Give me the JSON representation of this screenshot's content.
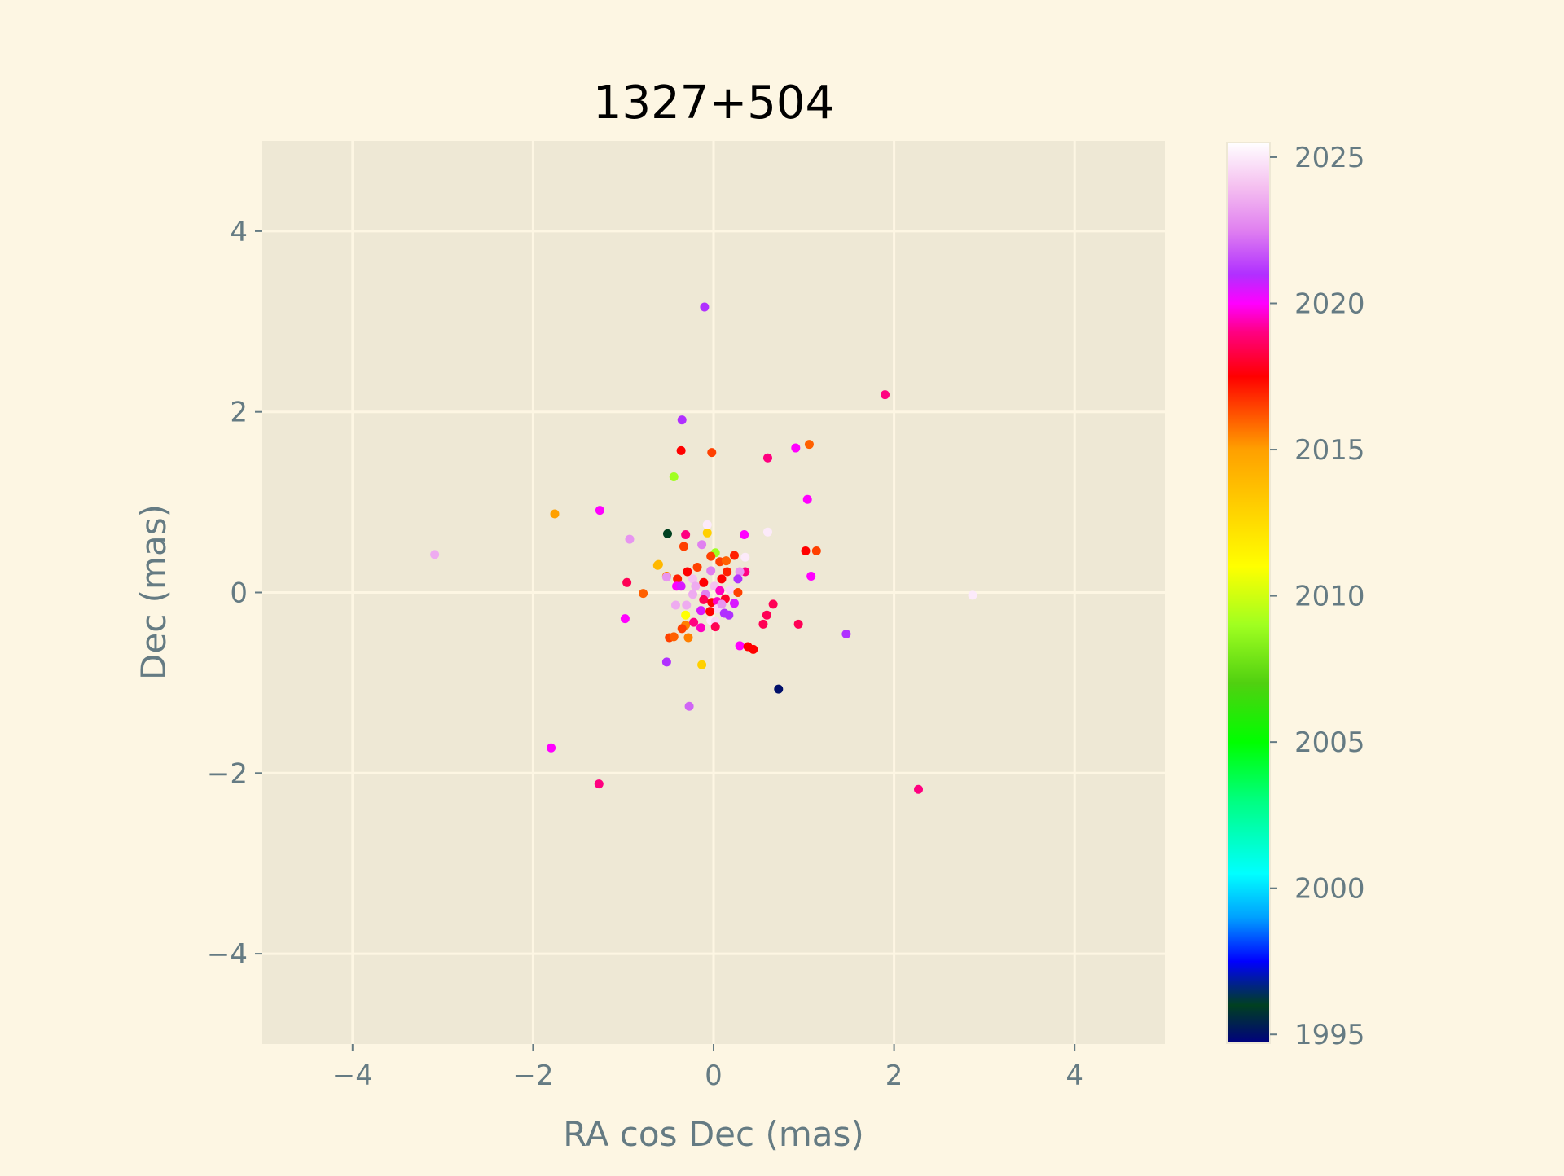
{
  "chart_data": {
    "type": "scatter",
    "title": "1327+504",
    "xlabel": "RA cos Dec (mas)",
    "ylabel": "Dec (mas)",
    "xlim": [
      -5,
      5
    ],
    "ylim": [
      -5,
      5
    ],
    "xticks": [
      -4,
      -2,
      0,
      2,
      4
    ],
    "yticks": [
      -4,
      -2,
      0,
      2,
      4
    ],
    "xtick_labels": [
      "−4",
      "−2",
      "0",
      "2",
      "4"
    ],
    "ytick_labels": [
      "−4",
      "−2",
      "0",
      "2",
      "4"
    ],
    "grid": true,
    "colorbar": {
      "range": [
        1994.7,
        2025.5
      ],
      "ticks": [
        1995,
        2000,
        2005,
        2010,
        2015,
        2020,
        2025
      ],
      "tick_labels": [
        "1995",
        "2000",
        "2005",
        "2010",
        "2015",
        "2020",
        "2025"
      ],
      "colormap": [
        [
          1994.7,
          "#000080"
        ],
        [
          1996,
          "#004020"
        ],
        [
          1997.5,
          "#0000ff"
        ],
        [
          1999,
          "#00a0ff"
        ],
        [
          2000.5,
          "#00ffff"
        ],
        [
          2003,
          "#00ff80"
        ],
        [
          2005,
          "#00ff00"
        ],
        [
          2007,
          "#50d010"
        ],
        [
          2009,
          "#a0ff20"
        ],
        [
          2011,
          "#ffff00"
        ],
        [
          2013,
          "#ffd000"
        ],
        [
          2015,
          "#ffa000"
        ],
        [
          2016.5,
          "#ff4000"
        ],
        [
          2017.5,
          "#ff0000"
        ],
        [
          2019,
          "#ff0080"
        ],
        [
          2020,
          "#ff00ff"
        ],
        [
          2021,
          "#b030ff"
        ],
        [
          2022.5,
          "#e080f0"
        ],
        [
          2024,
          "#f5c0f0"
        ],
        [
          2025.5,
          "#ffffff"
        ]
      ]
    },
    "points": [
      [
        -0.1,
        3.16,
        2021
      ],
      [
        1.9,
        2.19,
        2019
      ],
      [
        -0.35,
        1.91,
        2021
      ],
      [
        -0.36,
        1.57,
        2017.5
      ],
      [
        -0.02,
        1.55,
        2016.5
      ],
      [
        0.6,
        1.49,
        2019
      ],
      [
        0.91,
        1.6,
        2020
      ],
      [
        1.06,
        1.64,
        2016
      ],
      [
        -0.44,
        1.28,
        2009
      ],
      [
        1.04,
        1.03,
        2020
      ],
      [
        -1.76,
        0.87,
        2015
      ],
      [
        -1.26,
        0.91,
        2020
      ],
      [
        -0.93,
        0.59,
        2023
      ],
      [
        -0.51,
        0.65,
        1996
      ],
      [
        -3.09,
        0.42,
        2023.5
      ],
      [
        0.6,
        0.67,
        2025
      ],
      [
        1.02,
        0.46,
        2017.5
      ],
      [
        1.14,
        0.46,
        2016.5
      ],
      [
        1.08,
        0.18,
        2020
      ],
      [
        2.87,
        -0.03,
        2025
      ],
      [
        1.47,
        -0.46,
        2021
      ],
      [
        0.94,
        -0.35,
        2018.5
      ],
      [
        0.66,
        -0.13,
        2018.5
      ],
      [
        0.59,
        -0.25,
        2018.5
      ],
      [
        0.55,
        -0.35,
        2018.5
      ],
      [
        0.29,
        -0.59,
        2020
      ],
      [
        0.38,
        -0.6,
        2017.5
      ],
      [
        0.44,
        -0.63,
        2017.5
      ],
      [
        0.72,
        -1.07,
        1995
      ],
      [
        -0.52,
        -0.77,
        2021
      ],
      [
        -0.13,
        -0.8,
        2013
      ],
      [
        -0.27,
        -1.26,
        2022
      ],
      [
        -1.8,
        -1.72,
        2020
      ],
      [
        -1.27,
        -2.12,
        2019
      ],
      [
        2.27,
        -2.18,
        2019
      ],
      [
        -0.98,
        -0.29,
        2020
      ],
      [
        -0.96,
        0.11,
        2018.5
      ],
      [
        -0.78,
        -0.01,
        2016
      ],
      [
        -0.62,
        0.3,
        2014
      ],
      [
        -0.31,
        0.64,
        2019
      ],
      [
        -0.07,
        0.66,
        2013
      ],
      [
        -0.07,
        0.75,
        2025
      ],
      [
        0.34,
        0.64,
        2020
      ],
      [
        -0.33,
        0.51,
        2016.5
      ],
      [
        -0.13,
        0.53,
        2022.5
      ],
      [
        0.02,
        0.44,
        2009
      ],
      [
        -0.61,
        0.31,
        2014
      ],
      [
        -0.52,
        0.18,
        2015.5
      ],
      [
        -0.52,
        0.17,
        2023
      ],
      [
        -0.4,
        0.15,
        2017
      ],
      [
        -0.29,
        0.23,
        2017.5
      ],
      [
        -0.18,
        0.28,
        2016.5
      ],
      [
        -0.03,
        0.4,
        2016.5
      ],
      [
        0.07,
        0.34,
        2016.5
      ],
      [
        0.14,
        0.35,
        2016
      ],
      [
        0.23,
        0.41,
        2017
      ],
      [
        0.35,
        0.39,
        2025
      ],
      [
        0.35,
        0.23,
        2019
      ],
      [
        0.29,
        0.23,
        2023
      ],
      [
        0.27,
        0.15,
        2021
      ],
      [
        0.15,
        0.23,
        2017
      ],
      [
        0.09,
        0.15,
        2017.5
      ],
      [
        -0.03,
        0.24,
        2022.5
      ],
      [
        -0.11,
        0.11,
        2017.5
      ],
      [
        -0.23,
        0.15,
        2024
      ],
      [
        -0.41,
        0.07,
        2020
      ],
      [
        -0.36,
        0.07,
        2020.5
      ],
      [
        -0.2,
        0.07,
        2023.5
      ],
      [
        -0.23,
        -0.02,
        2023.5
      ],
      [
        -0.09,
        -0.02,
        2022.5
      ],
      [
        0.01,
        0.07,
        2024
      ],
      [
        0.07,
        0.02,
        2019.5
      ],
      [
        0.18,
        0.03,
        2024.5
      ],
      [
        0.27,
        0.0,
        2016.5
      ],
      [
        -0.11,
        -0.08,
        2018.5
      ],
      [
        -0.14,
        -0.2,
        2020.5
      ],
      [
        -0.31,
        -0.25,
        2011
      ],
      [
        -0.42,
        -0.14,
        2023.5
      ],
      [
        -0.3,
        -0.14,
        2023.5
      ],
      [
        -0.02,
        -0.11,
        2017.5
      ],
      [
        0.04,
        -0.1,
        2019.5
      ],
      [
        0.13,
        -0.07,
        2018
      ],
      [
        0.23,
        -0.12,
        2020.5
      ],
      [
        0.04,
        -0.18,
        2024.5
      ],
      [
        0.09,
        -0.13,
        2023
      ],
      [
        0.12,
        -0.23,
        2021
      ],
      [
        0.17,
        -0.25,
        2021
      ],
      [
        -0.04,
        -0.21,
        2017.5
      ],
      [
        -0.03,
        -0.31,
        2025
      ],
      [
        0.02,
        -0.32,
        2024.5
      ],
      [
        0.02,
        -0.38,
        2018.5
      ],
      [
        -0.31,
        -0.36,
        2015.5
      ],
      [
        -0.22,
        -0.33,
        2019
      ],
      [
        -0.14,
        -0.39,
        2019.5
      ],
      [
        -0.35,
        -0.4,
        2016.5
      ],
      [
        -0.49,
        -0.5,
        2016.5
      ],
      [
        -0.44,
        -0.49,
        2016
      ],
      [
        -0.28,
        -0.5,
        2015.5
      ]
    ],
    "colors": {
      "background": "#fdf6e3",
      "axes_face": "#eee8d5",
      "grid": "#fdf6e3",
      "text": "#657b83",
      "title": "#000000"
    }
  }
}
